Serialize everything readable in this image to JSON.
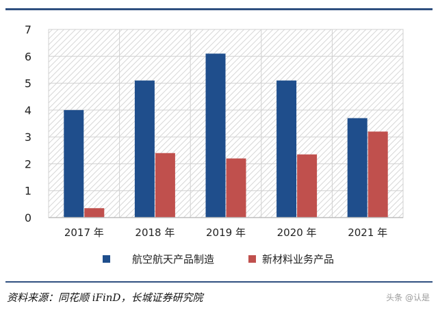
{
  "chart_data": {
    "type": "bar",
    "categories": [
      "2017 年",
      "2018 年",
      "2019 年",
      "2020 年",
      "2021 年"
    ],
    "series": [
      {
        "name": "航空航天产品制造",
        "values": [
          4.0,
          5.1,
          6.1,
          5.1,
          3.7
        ],
        "color": "#1f4e8c"
      },
      {
        "name": "新材料业务产品",
        "values": [
          0.35,
          2.4,
          2.2,
          2.35,
          3.2
        ],
        "color": "#c0504d"
      }
    ],
    "ylim": [
      0,
      7
    ],
    "yticks": [
      "0",
      "1",
      "2",
      "3",
      "4",
      "5",
      "6",
      "7"
    ],
    "grid": true,
    "legend_position": "bottom",
    "xlabel": "",
    "ylabel": ""
  },
  "source": "资料来源：同花顺 iFinD，长城证券研究院",
  "watermark": "头条 @认是"
}
